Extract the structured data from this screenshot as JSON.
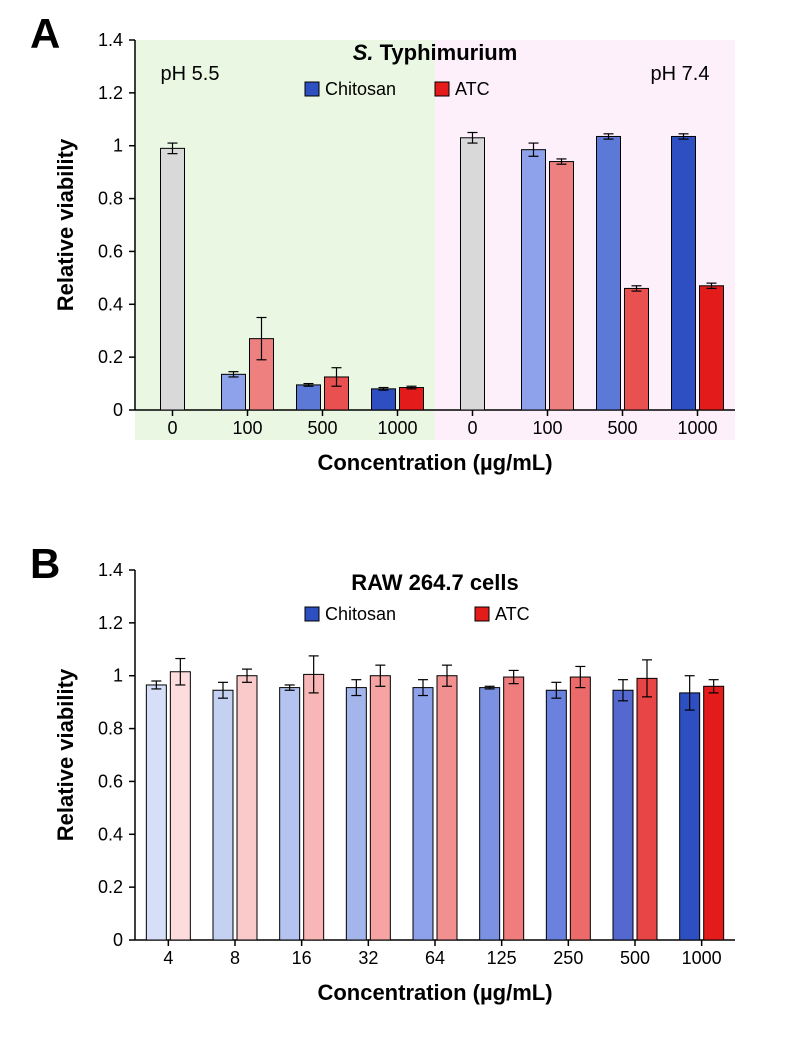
{
  "panelA": {
    "label": "A",
    "type": "bar",
    "title_prefix_italic": "S.",
    "title_rest": " Typhimurium",
    "ylabel": "Relative viability",
    "xlabel": "Concentration (µg/mL)",
    "ylim": [
      0,
      1.4
    ],
    "ytick_step": 0.2,
    "region_ph55": {
      "label": "pH 5.5",
      "bg": "#eaf8e3"
    },
    "region_ph74": {
      "label": "pH 7.4",
      "bg": "#fdf0fb"
    },
    "legend": {
      "chitosan": {
        "label": "Chitosan",
        "swatch": "#2e4fc2"
      },
      "atc": {
        "label": "ATC",
        "swatch": "#e31b1b"
      }
    },
    "groups_ph55": [
      "0",
      "100",
      "500",
      "1000"
    ],
    "groups_ph74": [
      "0",
      "100",
      "500",
      "1000"
    ],
    "ph55_bars": [
      {
        "single": true,
        "value": 0.99,
        "err": 0.02,
        "color": "#d9d9d9"
      },
      {
        "chitosan": {
          "v": 0.135,
          "e": 0.01,
          "c": "#8da2ea"
        },
        "atc": {
          "v": 0.27,
          "e": 0.08,
          "c": "#ee8080"
        }
      },
      {
        "chitosan": {
          "v": 0.095,
          "e": 0.005,
          "c": "#5d79d8"
        },
        "atc": {
          "v": 0.125,
          "e": 0.035,
          "c": "#e95050"
        }
      },
      {
        "chitosan": {
          "v": 0.08,
          "e": 0.005,
          "c": "#2e4fc2"
        },
        "atc": {
          "v": 0.085,
          "e": 0.005,
          "c": "#e31b1b"
        }
      }
    ],
    "ph74_bars": [
      {
        "single": true,
        "value": 1.03,
        "err": 0.02,
        "color": "#d9d9d9"
      },
      {
        "chitosan": {
          "v": 0.985,
          "e": 0.025,
          "c": "#8da2ea"
        },
        "atc": {
          "v": 0.94,
          "e": 0.01,
          "c": "#ee8080"
        }
      },
      {
        "chitosan": {
          "v": 1.035,
          "e": 0.01,
          "c": "#5d79d8"
        },
        "atc": {
          "v": 0.46,
          "e": 0.01,
          "c": "#e95050"
        }
      },
      {
        "chitosan": {
          "v": 1.035,
          "e": 0.01,
          "c": "#2e4fc2"
        },
        "atc": {
          "v": 0.47,
          "e": 0.01,
          "c": "#e31b1b"
        }
      }
    ]
  },
  "panelB": {
    "label": "B",
    "type": "bar",
    "title": "RAW 264.7 cells",
    "ylabel": "Relative viability",
    "xlabel": "Concentration (µg/mL)",
    "ylim": [
      0,
      1.4
    ],
    "ytick_step": 0.2,
    "legend": {
      "chitosan": {
        "label": "Chitosan",
        "swatch": "#2e4fc2"
      },
      "atc": {
        "label": "ATC",
        "swatch": "#e31b1b"
      }
    },
    "categories": [
      "4",
      "8",
      "16",
      "32",
      "64",
      "125",
      "250",
      "500",
      "1000"
    ],
    "chitosan_colors": [
      "#d6dff7",
      "#c5d1f3",
      "#b4c3ef",
      "#a3b5eb",
      "#8da2ea",
      "#7b92e2",
      "#6a82dd",
      "#5369d0",
      "#2e4fc2"
    ],
    "atc_colors": [
      "#fcdcdc",
      "#fac9c9",
      "#f8b6b6",
      "#f5a3a3",
      "#f29090",
      "#ef7d7d",
      "#ec6a6a",
      "#e84646",
      "#e31b1b"
    ],
    "chitosan_values": [
      0.965,
      0.945,
      0.955,
      0.955,
      0.955,
      0.955,
      0.945,
      0.945,
      0.935
    ],
    "chitosan_err": [
      0.015,
      0.03,
      0.01,
      0.03,
      0.03,
      0.005,
      0.03,
      0.04,
      0.065
    ],
    "atc_values": [
      1.015,
      1.0,
      1.005,
      1.0,
      1.0,
      0.995,
      0.995,
      0.99,
      0.96
    ],
    "atc_err": [
      0.05,
      0.025,
      0.07,
      0.04,
      0.04,
      0.025,
      0.04,
      0.07,
      0.025
    ]
  }
}
